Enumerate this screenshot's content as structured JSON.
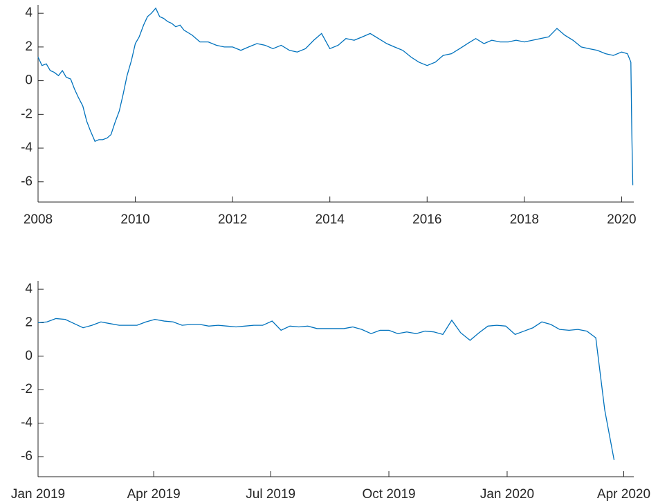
{
  "chart_data": [
    {
      "type": "line",
      "color": "#0072bd",
      "x": [
        2008.0,
        2008.08,
        2008.17,
        2008.25,
        2008.33,
        2008.42,
        2008.5,
        2008.58,
        2008.67,
        2008.75,
        2008.83,
        2008.92,
        2009.0,
        2009.08,
        2009.17,
        2009.25,
        2009.33,
        2009.42,
        2009.5,
        2009.58,
        2009.67,
        2009.75,
        2009.83,
        2009.92,
        2010.0,
        2010.08,
        2010.17,
        2010.25,
        2010.33,
        2010.42,
        2010.5,
        2010.58,
        2010.67,
        2010.75,
        2010.83,
        2010.92,
        2011.0,
        2011.17,
        2011.33,
        2011.5,
        2011.67,
        2011.83,
        2012.0,
        2012.17,
        2012.33,
        2012.5,
        2012.67,
        2012.83,
        2013.0,
        2013.17,
        2013.33,
        2013.5,
        2013.67,
        2013.83,
        2014.0,
        2014.17,
        2014.33,
        2014.5,
        2014.67,
        2014.83,
        2015.0,
        2015.17,
        2015.33,
        2015.5,
        2015.67,
        2015.83,
        2016.0,
        2016.17,
        2016.33,
        2016.5,
        2016.67,
        2016.83,
        2017.0,
        2017.17,
        2017.33,
        2017.5,
        2017.67,
        2017.83,
        2018.0,
        2018.17,
        2018.33,
        2018.5,
        2018.67,
        2018.83,
        2019.0,
        2019.17,
        2019.33,
        2019.5,
        2019.67,
        2019.83,
        2020.0,
        2020.12,
        2020.19,
        2020.21,
        2020.23
      ],
      "values": [
        1.4,
        0.9,
        1.0,
        0.6,
        0.5,
        0.3,
        0.6,
        0.2,
        0.1,
        -0.5,
        -1.0,
        -1.5,
        -2.4,
        -3.0,
        -3.6,
        -3.5,
        -3.5,
        -3.4,
        -3.2,
        -2.5,
        -1.8,
        -0.8,
        0.3,
        1.2,
        2.2,
        2.6,
        3.3,
        3.8,
        4.0,
        4.3,
        3.8,
        3.7,
        3.5,
        3.4,
        3.2,
        3.3,
        3.0,
        2.7,
        2.3,
        2.3,
        2.1,
        2.0,
        2.0,
        1.8,
        2.0,
        2.2,
        2.1,
        1.9,
        2.1,
        1.8,
        1.7,
        1.9,
        2.4,
        2.8,
        1.9,
        2.1,
        2.5,
        2.4,
        2.6,
        2.8,
        2.5,
        2.2,
        2.0,
        1.8,
        1.4,
        1.1,
        0.9,
        1.1,
        1.5,
        1.6,
        1.9,
        2.2,
        2.5,
        2.2,
        2.4,
        2.3,
        2.3,
        2.4,
        2.3,
        2.4,
        2.5,
        2.6,
        3.1,
        2.7,
        2.4,
        2.0,
        1.9,
        1.8,
        1.6,
        1.5,
        1.7,
        1.6,
        1.1,
        -3.2,
        -6.2
      ],
      "xlim": [
        2008,
        2020.25
      ],
      "xticks": [
        2008,
        2010,
        2012,
        2014,
        2016,
        2018,
        2020
      ],
      "ylim": [
        -7.2,
        4.5
      ],
      "yticks": [
        -6,
        -4,
        -2,
        0,
        2,
        4
      ]
    },
    {
      "type": "line",
      "color": "#0072bd",
      "x": [
        2019.0,
        2019.019,
        2019.038,
        2019.058,
        2019.077,
        2019.096,
        2019.115,
        2019.134,
        2019.153,
        2019.173,
        2019.192,
        2019.211,
        2019.23,
        2019.249,
        2019.269,
        2019.288,
        2019.307,
        2019.326,
        2019.345,
        2019.364,
        2019.384,
        2019.403,
        2019.422,
        2019.441,
        2019.46,
        2019.479,
        2019.499,
        2019.518,
        2019.537,
        2019.556,
        2019.575,
        2019.595,
        2019.614,
        2019.633,
        2019.652,
        2019.671,
        2019.69,
        2019.71,
        2019.729,
        2019.748,
        2019.767,
        2019.786,
        2019.806,
        2019.825,
        2019.844,
        2019.863,
        2019.882,
        2019.901,
        2019.921,
        2019.94,
        2019.959,
        2019.978,
        2019.997,
        2020.017,
        2020.036,
        2020.055,
        2020.074,
        2020.093,
        2020.112,
        2020.132,
        2020.151,
        2020.17,
        2020.189,
        2020.208,
        2020.228
      ],
      "values": [
        2.0,
        2.05,
        2.25,
        2.2,
        1.95,
        1.7,
        1.85,
        2.05,
        1.95,
        1.85,
        1.85,
        1.85,
        2.05,
        2.2,
        2.1,
        2.05,
        1.85,
        1.9,
        1.9,
        1.8,
        1.85,
        1.8,
        1.75,
        1.8,
        1.85,
        1.85,
        2.1,
        1.55,
        1.8,
        1.75,
        1.8,
        1.65,
        1.65,
        1.65,
        1.65,
        1.75,
        1.6,
        1.35,
        1.55,
        1.55,
        1.35,
        1.45,
        1.35,
        1.5,
        1.45,
        1.3,
        2.15,
        1.4,
        0.95,
        1.4,
        1.8,
        1.85,
        1.8,
        1.3,
        1.5,
        1.7,
        2.05,
        1.9,
        1.6,
        1.55,
        1.6,
        1.5,
        1.1,
        -3.2,
        -6.2
      ],
      "xlim": [
        2019,
        2020.27
      ],
      "xticks": [
        {
          "value": 2019,
          "label": "Jan 2019"
        },
        {
          "value": 2019.2466,
          "label": "Apr 2019"
        },
        {
          "value": 2019.4959,
          "label": "Jul 2019"
        },
        {
          "value": 2019.7479,
          "label": "Oct 2019"
        },
        {
          "value": 2020,
          "label": "Jan 2020"
        },
        {
          "value": 2020.2486,
          "label": "Apr 2020"
        }
      ],
      "ylim": [
        -7.2,
        4.5
      ],
      "yticks": [
        -6,
        -4,
        -2,
        0,
        2,
        4
      ]
    }
  ]
}
